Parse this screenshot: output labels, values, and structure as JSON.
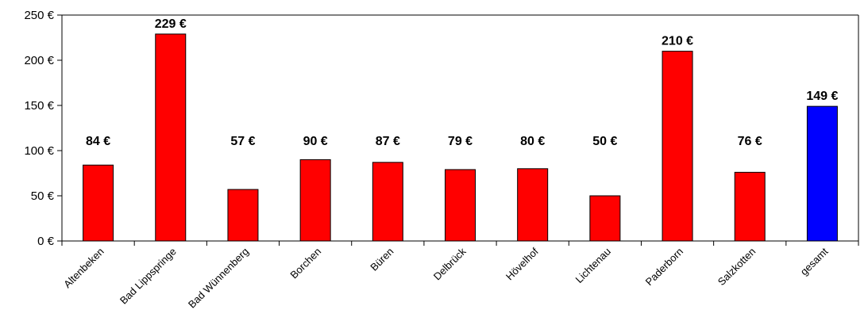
{
  "chart_data": {
    "type": "bar",
    "categories": [
      "Altenbeken",
      "Bad Lippspringe",
      "Bad Wünnenberg",
      "Borchen",
      "Büren",
      "Delbrück",
      "Hövelhof",
      "Lichtenau",
      "Paderborn",
      "Salzkotten",
      "gesamt"
    ],
    "values": [
      84,
      229,
      57,
      90,
      87,
      79,
      80,
      50,
      210,
      76,
      149
    ],
    "data_labels": [
      "84 €",
      "229 €",
      "57 €",
      "90 €",
      "87 €",
      "79 €",
      "80 €",
      "50 €",
      "210 €",
      "76 €",
      "149 €"
    ],
    "y_ticks": [
      0,
      50,
      100,
      150,
      200,
      250
    ],
    "y_tick_labels": [
      "0 €",
      "50 €",
      "100 €",
      "150 €",
      "200 €",
      "250 €"
    ],
    "ylim": [
      0,
      250
    ],
    "grid": false,
    "legend": "none",
    "bar_colors": [
      "#ff0000",
      "#ff0000",
      "#ff0000",
      "#ff0000",
      "#ff0000",
      "#ff0000",
      "#ff0000",
      "#ff0000",
      "#ff0000",
      "#ff0000",
      "#0000ff"
    ]
  }
}
